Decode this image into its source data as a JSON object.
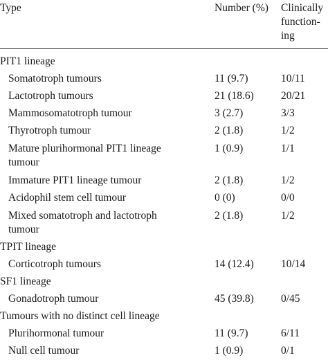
{
  "header": {
    "type": "Type",
    "number": "Number (%)",
    "clinically": [
      "Clinically",
      "function-",
      "ing"
    ]
  },
  "rows": [
    {
      "kind": "group",
      "type": "PIT1 lineage"
    },
    {
      "kind": "item",
      "type": "Somatotroph tumours",
      "number": "11 (9.7)",
      "clinical": "10/11"
    },
    {
      "kind": "item",
      "type": "Lactotroph tumours",
      "number": "21 (18.6)",
      "clinical": "20/21"
    },
    {
      "kind": "item",
      "type": "Mammosomatotroph tumour",
      "number": "3 (2.7)",
      "clinical": "3/3"
    },
    {
      "kind": "item",
      "type": "Thyrotroph tumour",
      "number": "2 (1.8)",
      "clinical": "1/2"
    },
    {
      "kind": "item2",
      "type": [
        "Mature plurihormonal PIT1 lineage",
        "tumour"
      ],
      "number": "1 (0.9)",
      "clinical": "1/1"
    },
    {
      "kind": "item",
      "type": "Immature PIT1 lineage tumour",
      "number": "2 (1.8)",
      "clinical": "1/2"
    },
    {
      "kind": "item",
      "type": "Acidophil stem cell tumour",
      "number": "0 (0)",
      "clinical": "0/0"
    },
    {
      "kind": "item2",
      "type": [
        "Mixed somatotroph and lactotroph",
        "tumour"
      ],
      "number": "2 (1.8)",
      "clinical": "1/2"
    },
    {
      "kind": "group",
      "type": "TPIT lineage"
    },
    {
      "kind": "item",
      "type": "Corticotroph tumours",
      "number": "14 (12.4)",
      "clinical": "10/14"
    },
    {
      "kind": "group",
      "type": "SF1 lineage"
    },
    {
      "kind": "item",
      "type": "Gonadotroph tumour",
      "number": "45 (39.8)",
      "clinical": "0/45"
    },
    {
      "kind": "group",
      "type": "Tumours with no distinct cell lineage"
    },
    {
      "kind": "item",
      "type": "Plurihormonal tumour",
      "number": "11 (9.7)",
      "clinical": "6/11"
    },
    {
      "kind": "item",
      "type": "Null cell tumour",
      "number": "1 (0.9)",
      "clinical": "0/1"
    }
  ]
}
